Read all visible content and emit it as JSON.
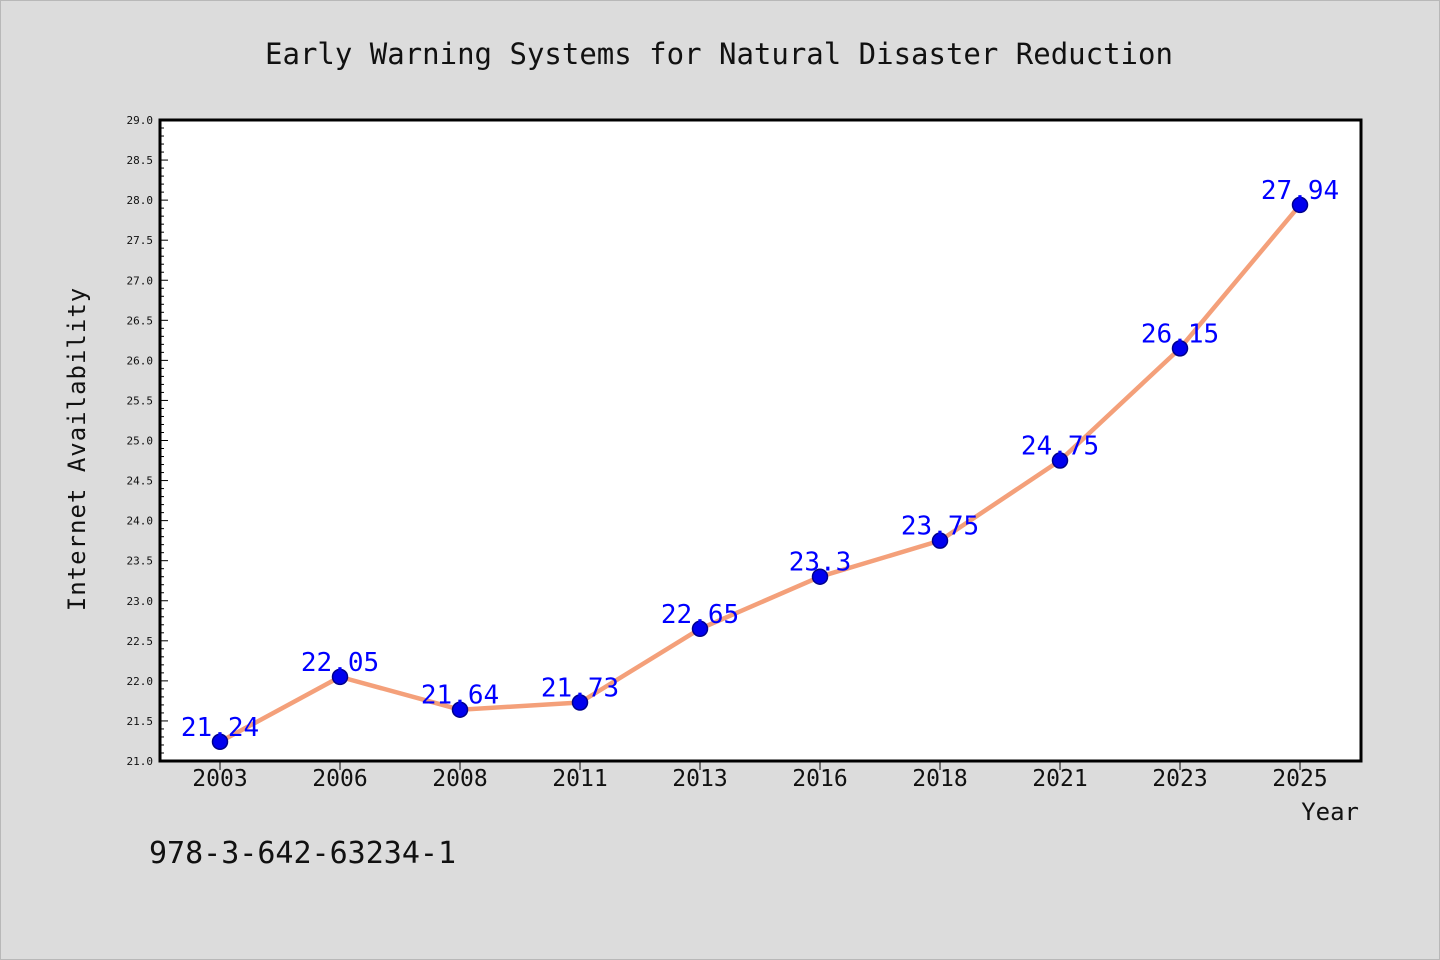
{
  "chart_data": {
    "type": "line",
    "title": "Early Warning Systems for Natural Disaster Reduction",
    "xlabel": "Year",
    "ylabel": "Internet Availability",
    "categories": [
      "2003",
      "2006",
      "2008",
      "2011",
      "2013",
      "2016",
      "2018",
      "2021",
      "2023",
      "2025"
    ],
    "series": [
      {
        "values": [
          21.24,
          22.05,
          21.64,
          21.73,
          22.65,
          23.3,
          23.75,
          24.75,
          26.15,
          27.94
        ],
        "labels": [
          "21.24",
          "22.05",
          "21.64",
          "21.73",
          "22.65",
          "23.3",
          "23.75",
          "24.75",
          "26.15",
          "27.94"
        ]
      }
    ],
    "ylim": [
      21.0,
      29.0
    ],
    "yticks": [
      "21.0",
      "21.5",
      "22.0",
      "22.5",
      "23.0",
      "23.5",
      "24.0",
      "24.5",
      "25.0",
      "25.5",
      "26.0",
      "26.5",
      "27.0",
      "27.5",
      "28.0",
      "28.5",
      "29.0"
    ],
    "grid": false,
    "legend": "none",
    "colors": {
      "line": "#f4a07a",
      "marker": "#0000ee",
      "marker_edge": "#00008b",
      "data_label": "#0000ff",
      "plot_background": "#ffffff",
      "figure_background": "#dcdcdc"
    }
  },
  "footer": {
    "isbn": "978-3-642-63234-1"
  }
}
